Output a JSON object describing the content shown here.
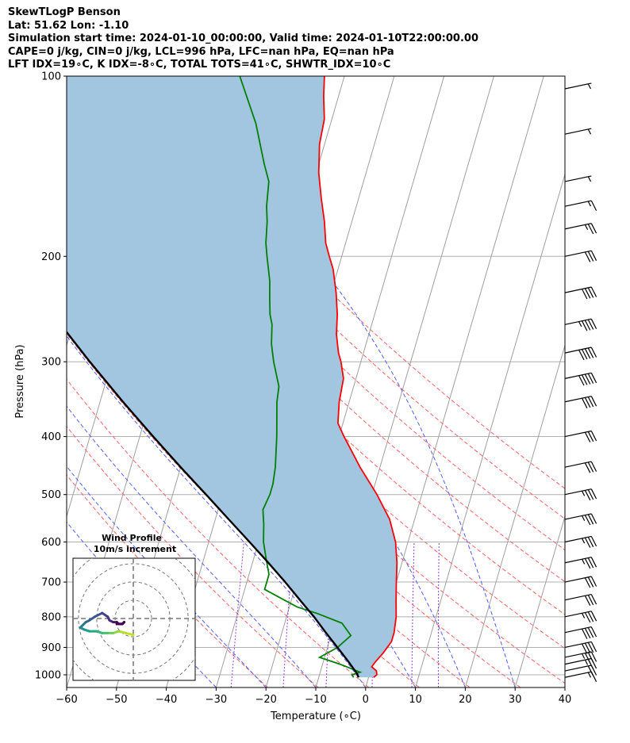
{
  "header": {
    "line1": "SkewTLogP Benson",
    "line2": "Lat: 51.62   Lon: -1.10",
    "line3": "Simulation start time: 2024-01-10_00:00:00, Valid time: 2024-01-10T22:00:00.00",
    "line4": "CAPE=0 j/kg, CIN=0 j/kg, LCL=996 hPa, LFC=nan hPa, EQ=nan hPa",
    "line5": "LFT IDX=19∘C, K IDX=-8∘C, TOTAL TOTS=41∘C, SHWTR_IDX=10∘C"
  },
  "chart_data": {
    "type": "line",
    "title": "SkewTLogP Benson",
    "xlabel": "Temperature (∘C)",
    "ylabel": "Pressure (hPa)",
    "xlim": [
      -60,
      40
    ],
    "ylim": [
      1050,
      100
    ],
    "x_ticks": [
      -60,
      -50,
      -40,
      -30,
      -20,
      -10,
      0,
      10,
      20,
      30,
      40
    ],
    "x_tick_labels": [
      "−60",
      "−50",
      "−40",
      "−30",
      "−20",
      "−10",
      "0",
      "10",
      "20",
      "30",
      "40"
    ],
    "y_ticks": [
      100,
      200,
      300,
      400,
      500,
      600,
      700,
      800,
      900,
      1000
    ],
    "y_tick_labels": [
      "100",
      "200",
      "300",
      "400",
      "500",
      "600",
      "700",
      "800",
      "900",
      "1000"
    ],
    "skew_note": "isotherms skewed; plotted x = T + 35*log10(1050/p)",
    "series": [
      {
        "name": "Temperature",
        "color": "#ff0000",
        "points": [
          [
            1010,
            1.0
          ],
          [
            1000,
            1.5
          ],
          [
            985,
            1.2
          ],
          [
            970,
            0.0
          ],
          [
            950,
            0.5
          ],
          [
            920,
            1.5
          ],
          [
            880,
            2.5
          ],
          [
            850,
            2.5
          ],
          [
            800,
            2.0
          ],
          [
            750,
            1.0
          ],
          [
            700,
            0.0
          ],
          [
            650,
            -1.0
          ],
          [
            600,
            -2.5
          ],
          [
            550,
            -5.0
          ],
          [
            500,
            -9.0
          ],
          [
            450,
            -14.0
          ],
          [
            400,
            -19.0
          ],
          [
            380,
            -21.0
          ],
          [
            350,
            -22.0
          ],
          [
            320,
            -22.5
          ],
          [
            300,
            -24.0
          ],
          [
            290,
            -25.0
          ],
          [
            270,
            -26.5
          ],
          [
            250,
            -27.5
          ],
          [
            230,
            -29.0
          ],
          [
            210,
            -31.0
          ],
          [
            200,
            -32.5
          ],
          [
            190,
            -34.0
          ],
          [
            175,
            -35.5
          ],
          [
            160,
            -37.5
          ],
          [
            145,
            -39.5
          ],
          [
            130,
            -41.0
          ],
          [
            118,
            -41.5
          ],
          [
            108,
            -43.0
          ],
          [
            100,
            -44.0
          ]
        ]
      },
      {
        "name": "Dewpoint",
        "color": "#008000",
        "points": [
          [
            1010,
            -3.0
          ],
          [
            1000,
            -3.5
          ],
          [
            990,
            -2.0
          ],
          [
            960,
            -6.5
          ],
          [
            935,
            -11.0
          ],
          [
            900,
            -8.0
          ],
          [
            860,
            -6.0
          ],
          [
            820,
            -8.5
          ],
          [
            790,
            -14.0
          ],
          [
            770,
            -18.5
          ],
          [
            720,
            -26.0
          ],
          [
            680,
            -26.0
          ],
          [
            640,
            -27.5
          ],
          [
            600,
            -29.0
          ],
          [
            560,
            -30.0
          ],
          [
            530,
            -31.0
          ],
          [
            500,
            -30.5
          ],
          [
            480,
            -30.5
          ],
          [
            450,
            -31.0
          ],
          [
            400,
            -32.5
          ],
          [
            350,
            -34.5
          ],
          [
            330,
            -35.0
          ],
          [
            300,
            -37.5
          ],
          [
            280,
            -39.0
          ],
          [
            260,
            -40.0
          ],
          [
            250,
            -41.0
          ],
          [
            235,
            -42.0
          ],
          [
            220,
            -43.0
          ],
          [
            200,
            -45.0
          ],
          [
            190,
            -46.0
          ],
          [
            175,
            -47.0
          ],
          [
            165,
            -48.0
          ],
          [
            150,
            -49.0
          ],
          [
            140,
            -51.0
          ],
          [
            120,
            -55.0
          ],
          [
            100,
            -61.0
          ]
        ]
      },
      {
        "name": "Parcel profile",
        "color": "#000000",
        "points": [
          [
            1010,
            -2.0
          ],
          [
            996,
            -2.5
          ],
          [
            950,
            -5.0
          ],
          [
            900,
            -8.0
          ],
          [
            850,
            -11.2
          ],
          [
            800,
            -14.5
          ],
          [
            750,
            -18.3
          ],
          [
            700,
            -22.3
          ],
          [
            650,
            -26.8
          ],
          [
            600,
            -31.8
          ],
          [
            550,
            -37.3
          ],
          [
            500,
            -43.3
          ],
          [
            450,
            -50.0
          ],
          [
            400,
            -57.3
          ],
          [
            350,
            -65.4
          ],
          [
            300,
            -74.4
          ],
          [
            250,
            -84.6
          ],
          [
            200,
            -96.5
          ],
          [
            150,
            -110.5
          ],
          [
            100,
            -128.0
          ]
        ]
      }
    ],
    "shading": {
      "label": "CAPE/CIN area between parcel and temperature",
      "color": "#a2c6e0"
    },
    "dry_adiabats_theta_K": [
      250,
      260,
      270,
      280,
      290,
      300,
      310,
      320,
      330,
      340,
      350,
      360,
      370
    ],
    "moist_adiabats_start_C": [
      -30,
      -20,
      -10,
      0,
      10,
      20,
      30
    ],
    "mixing_ratio_lines_gkg": [
      0.4,
      1,
      2,
      4,
      7,
      10
    ],
    "wind_barbs": [
      {
        "p": 1010,
        "speed_kt": 15
      },
      {
        "p": 985,
        "speed_kt": 20
      },
      {
        "p": 960,
        "speed_kt": 25
      },
      {
        "p": 935,
        "speed_kt": 35
      },
      {
        "p": 900,
        "speed_kt": 40
      },
      {
        "p": 850,
        "speed_kt": 40
      },
      {
        "p": 800,
        "speed_kt": 35
      },
      {
        "p": 750,
        "speed_kt": 30
      },
      {
        "p": 700,
        "speed_kt": 30
      },
      {
        "p": 650,
        "speed_kt": 35
      },
      {
        "p": 600,
        "speed_kt": 35
      },
      {
        "p": 550,
        "speed_kt": 35
      },
      {
        "p": 500,
        "speed_kt": 35
      },
      {
        "p": 450,
        "speed_kt": 30
      },
      {
        "p": 400,
        "speed_kt": 30
      },
      {
        "p": 350,
        "speed_kt": 40
      },
      {
        "p": 320,
        "speed_kt": 50
      },
      {
        "p": 290,
        "speed_kt": 50
      },
      {
        "p": 260,
        "speed_kt": 45
      },
      {
        "p": 230,
        "speed_kt": 40
      },
      {
        "p": 200,
        "speed_kt": 30
      },
      {
        "p": 180,
        "speed_kt": 25
      },
      {
        "p": 165,
        "speed_kt": 15
      },
      {
        "p": 150,
        "speed_kt": 5
      },
      {
        "p": 125,
        "speed_kt": 5
      },
      {
        "p": 105,
        "speed_kt": 5
      }
    ],
    "hodograph": {
      "title_line1": "Wind Profile",
      "title_line2": "10m/s increment",
      "ring_increment_ms": 10,
      "points_uv": [
        [
          0,
          -9
        ],
        [
          -4,
          -8
        ],
        [
          -8,
          -7
        ],
        [
          -11,
          -8
        ],
        [
          -14,
          -8
        ],
        [
          -17,
          -8
        ],
        [
          -20,
          -7
        ],
        [
          -24,
          -7
        ],
        [
          -27,
          -6
        ],
        [
          -29,
          -5
        ],
        [
          -28,
          -4
        ],
        [
          -26,
          -2
        ],
        [
          -24,
          -1
        ],
        [
          -21,
          1
        ],
        [
          -17,
          3
        ],
        [
          -14,
          1
        ],
        [
          -13,
          -1
        ],
        [
          -11,
          -2
        ],
        [
          -9,
          -2
        ],
        [
          -8,
          -3
        ],
        [
          -6,
          -3
        ],
        [
          -5,
          -2
        ],
        [
          -5,
          -2
        ],
        [
          -6,
          -3
        ],
        [
          -8,
          -3
        ],
        [
          -9,
          -3
        ]
      ]
    }
  }
}
